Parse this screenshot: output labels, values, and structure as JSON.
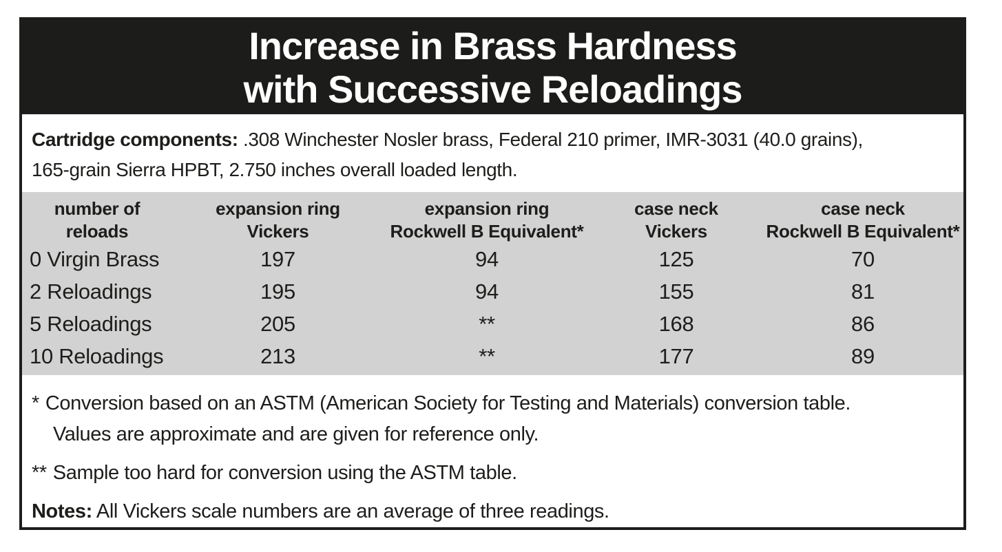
{
  "title": {
    "line1": "Increase in Brass Hardness",
    "line2": "with Successive Reloadings"
  },
  "components": {
    "label": "Cartridge components:",
    "text_line1": ".308 Winchester Nosler brass, Federal 210 primer, IMR-3031 (40.0 grains),",
    "text_line2": "165-grain Sierra HPBT, 2.750 inches overall loaded length."
  },
  "table": {
    "headers": [
      {
        "l1": "number of",
        "l2": "reloads"
      },
      {
        "l1": "expansion ring",
        "l2": "Vickers"
      },
      {
        "l1": "expansion ring",
        "l2": "Rockwell B Equivalent*"
      },
      {
        "l1": "case neck",
        "l2": "Vickers"
      },
      {
        "l1": "case neck",
        "l2": "Rockwell B Equivalent*"
      }
    ],
    "rows": [
      {
        "label": "0 Virgin Brass",
        "expansion_ring_vickers": "197",
        "expansion_ring_rockwell": "94",
        "case_neck_vickers": "125",
        "case_neck_rockwell": "70"
      },
      {
        "label": "2 Reloadings",
        "expansion_ring_vickers": "195",
        "expansion_ring_rockwell": "94",
        "case_neck_vickers": "155",
        "case_neck_rockwell": "81"
      },
      {
        "label": "5 Reloadings",
        "expansion_ring_vickers": "205",
        "expansion_ring_rockwell": "**",
        "case_neck_vickers": "168",
        "case_neck_rockwell": "86"
      },
      {
        "label": "10 Reloadings",
        "expansion_ring_vickers": "213",
        "expansion_ring_rockwell": "**",
        "case_neck_vickers": "177",
        "case_neck_rockwell": "89"
      }
    ]
  },
  "footnotes": {
    "fn1_marker": "*",
    "fn1_line1": "Conversion based on an ASTM (American Society for Testing and Materials) conversion table.",
    "fn1_line2": "Values are approximate and are given for reference only.",
    "fn2_marker": "**",
    "fn2_text": "Sample too hard for conversion using the ASTM table.",
    "notes_label": "Notes:",
    "notes_text": "All Vickers scale numbers are an average of three readings."
  },
  "colors": {
    "title_band_black": "#1c1c1a",
    "table_gray": "#d2d2d2",
    "text_black": "#1d1d1b",
    "background": "#ffffff"
  }
}
